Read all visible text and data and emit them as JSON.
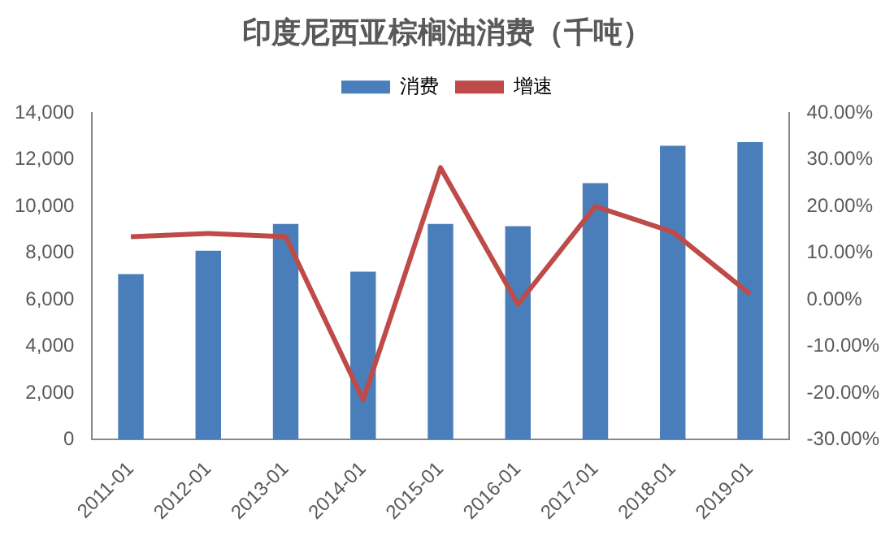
{
  "chart_data": {
    "type": "bar",
    "title": "印度尼西亚棕榈油消费（千吨）",
    "categories": [
      "2011-01",
      "2012-01",
      "2013-01",
      "2014-01",
      "2015-01",
      "2016-01",
      "2017-01",
      "2018-01",
      "2019-01"
    ],
    "series": [
      {
        "name": "消费",
        "color": "#4a7ebb",
        "values": [
          7100,
          8100,
          9250,
          7200,
          9250,
          9150,
          11000,
          12600,
          12750
        ]
      },
      {
        "name": "增速",
        "type": "line",
        "axis": "y2",
        "color": "#be4b48",
        "values": [
          13.5,
          14.2,
          13.5,
          -21.5,
          28.3,
          -1,
          20,
          14.5,
          1.2
        ]
      }
    ],
    "ylim": [
      0,
      14000
    ],
    "yticks": [
      {
        "value": 0,
        "label": "0"
      },
      {
        "value": 2000,
        "label": "2,000"
      },
      {
        "value": 4000,
        "label": "4,000"
      },
      {
        "value": 6000,
        "label": "6,000"
      },
      {
        "value": 8000,
        "label": "8,000"
      },
      {
        "value": 10000,
        "label": "10,000"
      },
      {
        "value": 12000,
        "label": "12,000"
      },
      {
        "value": 14000,
        "label": "14,000"
      }
    ],
    "y2lim": [
      -30,
      40
    ],
    "y2ticks": [
      {
        "value": -30,
        "label": "-30.00%"
      },
      {
        "value": -20,
        "label": "-20.00%"
      },
      {
        "value": -10,
        "label": "-10.00%"
      },
      {
        "value": 0,
        "label": "0.00%"
      },
      {
        "value": 10,
        "label": "10.00%"
      },
      {
        "value": 20,
        "label": "20.00%"
      },
      {
        "value": 30,
        "label": "30.00%"
      },
      {
        "value": 40,
        "label": "40.00%"
      }
    ],
    "grid": false,
    "legend": "top",
    "marker": "none"
  }
}
